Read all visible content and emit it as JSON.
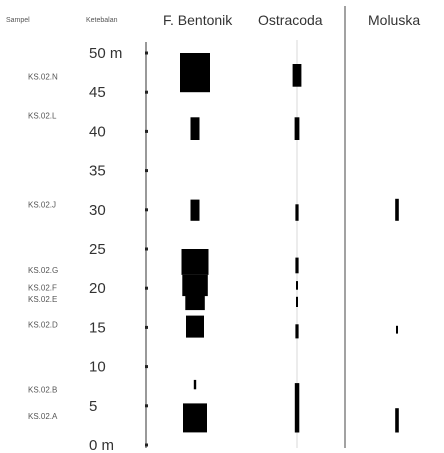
{
  "chart_data": {
    "type": "bar",
    "orientation": "vertical-stratigraphic-column",
    "headers": {
      "sample": "Sampel",
      "depth": "Ketebalan",
      "groups": [
        "F. Bentonik",
        "Ostracoda",
        "Moluska"
      ]
    },
    "y_ticks": [
      "50 m",
      "45",
      "40",
      "35",
      "30",
      "25",
      "20",
      "15",
      "10",
      "5",
      "0 m"
    ],
    "y_tick_values": [
      50,
      45,
      40,
      35,
      30,
      25,
      20,
      15,
      10,
      5,
      0
    ],
    "ylim": [
      0,
      50
    ],
    "samples": [
      {
        "label": "KS.02.N",
        "y": 47
      },
      {
        "label": "KS.02.L",
        "y": 42
      },
      {
        "label": "KS.02.J",
        "y": 30.7
      },
      {
        "label": "KS.02.G",
        "y": 22.3
      },
      {
        "label": "KS.02.F",
        "y": 20.1
      },
      {
        "label": "KS.02.E",
        "y": 18.6
      },
      {
        "label": "KS.02.D",
        "y": 15.4
      },
      {
        "label": "KS.02.B",
        "y": 7.1
      },
      {
        "label": "KS.02.A",
        "y": 3.7
      }
    ],
    "series": [
      {
        "name": "F. Bentonik",
        "bars": [
          {
            "y_from": 45,
            "y_to": 50,
            "width": 1.0
          },
          {
            "y_from": 38.9,
            "y_to": 41.8,
            "width": 0.3
          },
          {
            "y_from": 28.6,
            "y_to": 31.3,
            "width": 0.3
          },
          {
            "y_from": 21.7,
            "y_to": 25.0,
            "width": 0.9
          },
          {
            "y_from": 19.0,
            "y_to": 21.7,
            "width": 0.85
          },
          {
            "y_from": 17.2,
            "y_to": 19.0,
            "width": 0.65
          },
          {
            "y_from": 13.7,
            "y_to": 16.5,
            "width": 0.6
          },
          {
            "y_from": 7.1,
            "y_to": 8.3,
            "width": 0.08
          },
          {
            "y_from": 1.6,
            "y_to": 5.3,
            "width": 0.8
          }
        ]
      },
      {
        "name": "Ostracoda",
        "bars": [
          {
            "y_from": 45.7,
            "y_to": 48.6,
            "width": 0.55
          },
          {
            "y_from": 38.9,
            "y_to": 41.8,
            "width": 0.3
          },
          {
            "y_from": 28.6,
            "y_to": 30.7,
            "width": 0.2
          },
          {
            "y_from": 21.9,
            "y_to": 23.9,
            "width": 0.2
          },
          {
            "y_from": 19.8,
            "y_to": 20.9,
            "width": 0.08
          },
          {
            "y_from": 17.6,
            "y_to": 18.9,
            "width": 0.08
          },
          {
            "y_from": 13.6,
            "y_to": 15.4,
            "width": 0.2
          },
          {
            "y_from": 1.6,
            "y_to": 7.9,
            "width": 0.28
          }
        ]
      },
      {
        "name": "Moluska",
        "bars": [
          {
            "y_from": 28.6,
            "y_to": 31.4,
            "width": 0.3
          },
          {
            "y_from": 14.2,
            "y_to": 15.2,
            "width": 0.1
          },
          {
            "y_from": 1.6,
            "y_to": 4.7,
            "width": 0.3
          }
        ]
      }
    ]
  }
}
